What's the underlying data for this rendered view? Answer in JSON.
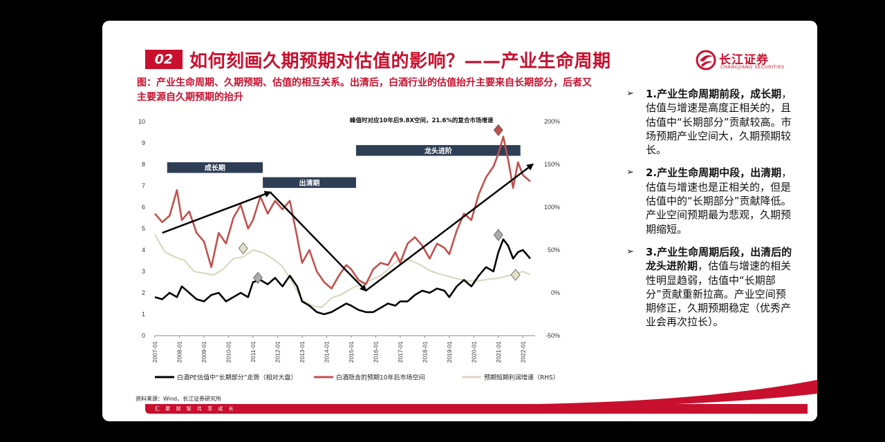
{
  "slide": {
    "section_number": "02",
    "title": "如何刻画久期预期对估值的影响？——产业生命周期",
    "logo": {
      "name": "长江证券",
      "en": "CHANGJIANG SECURITIES"
    },
    "figure_caption": "图：产业生命周期、久期预期、估值的相互关系。出清后，白酒行业的估值抬升主要来自长期部分，后者又主要源自久期预期的抬升",
    "source": "资料来源：Wind，长江证券研究所",
    "footer_motto": "汇 聚 财 智      共 享 成 长"
  },
  "bullets": [
    {
      "bold": "1.产业生命周期前段，成长期",
      "text": "，估值与增速是高度正相关的，且估值中“长期部分”贡献较高。市场预期产业空间大，久期预期较长。"
    },
    {
      "bold": "2.产业生命周期中段，出清期",
      "text": "，估值与增速也是正相关的，但是估值中的“长期部分”贡献降低。产业空间预期最为悲观，久期预期缩短。"
    },
    {
      "bold": "3.产业生命周期后段，出清后的龙头进阶期",
      "text": "，估值与增速的相关性明显趋弱，估值中“长期部分”贡献重新拉高。产业空间预期修正，久期预期稳定（优秀产业会再次拉长）。"
    }
  ],
  "colors": {
    "accent": "#c8102e",
    "phase_box": "#2e3e55",
    "series_black": "#000000",
    "series_red": "#c0504d",
    "series_beige": "#dcd8c0"
  },
  "chart_data": {
    "type": "line",
    "annotation": "峰值时对应10年后9.8X空间，21.6%的复合市场增速",
    "phases": [
      "成长期",
      "出清期",
      "龙头进阶"
    ],
    "x_ticks": [
      "2007-01",
      "2008-01",
      "2009-01",
      "2010-01",
      "2011-01",
      "2012-01",
      "2013-01",
      "2014-01",
      "2015-01",
      "2016-01",
      "2017-01",
      "2018-01",
      "2019-01",
      "2020-01",
      "2021-01",
      "2022-01"
    ],
    "y_left_ticks": [
      "0",
      "1",
      "2",
      "3",
      "4",
      "5",
      "6",
      "7",
      "8",
      "9",
      "10"
    ],
    "y_right_ticks": [
      "-50%",
      "0%",
      "50%",
      "100%",
      "150%",
      "200%"
    ],
    "ylim_left": [
      0,
      10
    ],
    "ylim_right": [
      -0.5,
      2.0
    ],
    "legend": [
      "白酒PE估值中“长期部分”走势（相对大盘）",
      "白酒隐含的预期10年后市场空间",
      "预期短期利润增速（RHS）"
    ],
    "series": [
      {
        "name": "白酒PE估值中“长期部分”走势（相对大盘）",
        "axis": "left",
        "x": [
          2007.0,
          2007.3,
          2007.6,
          2007.9,
          2008.1,
          2008.4,
          2008.7,
          2009.0,
          2009.3,
          2009.6,
          2009.9,
          2010.2,
          2010.5,
          2010.8,
          2011.0,
          2011.3,
          2011.6,
          2011.9,
          2012.2,
          2012.5,
          2012.8,
          2013.0,
          2013.3,
          2013.6,
          2013.9,
          2014.2,
          2014.5,
          2014.8,
          2015.0,
          2015.3,
          2015.6,
          2015.9,
          2016.2,
          2016.5,
          2016.8,
          2017.0,
          2017.3,
          2017.6,
          2017.9,
          2018.2,
          2018.5,
          2018.8,
          2019.0,
          2019.3,
          2019.6,
          2019.9,
          2020.2,
          2020.5,
          2020.8,
          2021.0,
          2021.2,
          2021.4,
          2021.6,
          2021.8,
          2022.0,
          2022.3
        ],
        "values": [
          1.8,
          1.7,
          2.0,
          1.8,
          2.3,
          2.0,
          1.7,
          1.6,
          1.9,
          2.0,
          1.6,
          1.8,
          2.0,
          1.8,
          2.5,
          2.6,
          2.4,
          2.7,
          2.3,
          2.8,
          2.3,
          1.6,
          1.4,
          1.1,
          1.0,
          1.1,
          1.3,
          1.5,
          1.4,
          1.2,
          1.1,
          1.1,
          1.3,
          1.5,
          1.4,
          1.6,
          1.6,
          1.9,
          2.1,
          2.0,
          2.2,
          2.1,
          1.8,
          2.3,
          2.6,
          2.3,
          2.8,
          3.2,
          3.0,
          3.9,
          4.5,
          4.2,
          3.6,
          3.9,
          4.0,
          3.6
        ]
      },
      {
        "name": "白酒隐含的预期10年后市场空间",
        "axis": "left",
        "x": [
          2007.0,
          2007.3,
          2007.6,
          2007.9,
          2008.1,
          2008.4,
          2008.7,
          2009.0,
          2009.3,
          2009.6,
          2009.9,
          2010.2,
          2010.5,
          2010.8,
          2011.0,
          2011.3,
          2011.6,
          2011.9,
          2012.2,
          2012.5,
          2012.8,
          2013.0,
          2013.3,
          2013.6,
          2013.9,
          2014.2,
          2014.5,
          2014.8,
          2015.0,
          2015.3,
          2015.6,
          2015.9,
          2016.2,
          2016.5,
          2016.8,
          2017.0,
          2017.3,
          2017.6,
          2017.9,
          2018.2,
          2018.5,
          2018.8,
          2019.0,
          2019.3,
          2019.6,
          2019.9,
          2020.2,
          2020.5,
          2020.8,
          2021.0,
          2021.2,
          2021.4,
          2021.6,
          2021.8,
          2022.0,
          2022.3
        ],
        "values": [
          5.7,
          5.3,
          5.6,
          6.8,
          5.4,
          5.8,
          4.8,
          4.4,
          3.2,
          4.8,
          4.3,
          5.5,
          6.1,
          5.0,
          5.4,
          6.5,
          5.7,
          6.3,
          5.9,
          6.3,
          4.6,
          3.4,
          4.0,
          3.0,
          2.5,
          2.2,
          2.8,
          3.3,
          3.1,
          2.6,
          2.4,
          3.1,
          3.4,
          3.3,
          3.9,
          3.4,
          4.3,
          4.6,
          4.2,
          3.6,
          4.3,
          4.1,
          3.8,
          4.9,
          5.7,
          5.4,
          6.6,
          7.4,
          7.9,
          8.5,
          9.3,
          8.2,
          6.9,
          8.1,
          7.5,
          7.2
        ]
      },
      {
        "name": "预期短期利润增速（RHS）",
        "axis": "right",
        "x": [
          2007.0,
          2007.4,
          2007.8,
          2008.2,
          2008.6,
          2009.0,
          2009.4,
          2009.8,
          2010.2,
          2010.6,
          2011.0,
          2011.4,
          2011.8,
          2012.2,
          2012.6,
          2013.0,
          2013.4,
          2013.8,
          2014.2,
          2014.6,
          2015.0,
          2015.4,
          2015.8,
          2016.2,
          2016.6,
          2017.0,
          2017.4,
          2017.8,
          2018.2,
          2018.6,
          2019.0,
          2019.4,
          2019.8,
          2020.2,
          2020.6,
          2021.0,
          2021.4,
          2021.8,
          2022.0,
          2022.3
        ],
        "values": [
          0.68,
          0.48,
          0.42,
          0.38,
          0.25,
          0.23,
          0.21,
          0.28,
          0.4,
          0.42,
          0.5,
          0.47,
          0.4,
          0.31,
          0.12,
          -0.08,
          -0.15,
          -0.17,
          -0.06,
          -0.02,
          0.05,
          0.1,
          0.15,
          0.2,
          0.3,
          0.4,
          0.38,
          0.33,
          0.26,
          0.22,
          0.19,
          0.16,
          0.14,
          0.14,
          0.16,
          0.17,
          0.2,
          0.23,
          0.25,
          0.21
        ]
      }
    ],
    "peak_markers": [
      {
        "series": 1,
        "x": 2021.0,
        "y": 9.6
      },
      {
        "series": 0,
        "x": 2021.0,
        "y": 4.7
      },
      {
        "series": 0,
        "x": 2011.2,
        "y": 2.7
      },
      {
        "series": 2,
        "x": 2010.6,
        "y": 0.52
      },
      {
        "series": 2,
        "x": 2021.7,
        "y": 0.21
      }
    ],
    "trend_arrows": [
      {
        "from": [
          2007.3,
          4.8
        ],
        "to": [
          2011.7,
          6.7
        ]
      },
      {
        "from": [
          2011.7,
          6.7
        ],
        "to": [
          2015.6,
          2.1
        ]
      },
      {
        "from": [
          2015.6,
          2.1
        ],
        "to": [
          2022.4,
          8.0
        ]
      }
    ]
  }
}
